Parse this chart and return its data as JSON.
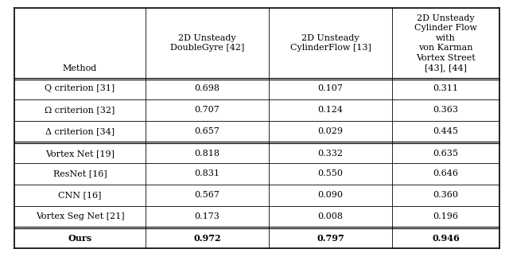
{
  "header_texts": [
    "Method",
    "2D Unsteady\nDoubleGyre [42]",
    "2D Unsteady\nCylinderFlow [13]",
    "2D Unsteady\nCylinder Flow\nwith\nvon Karman\nVortex Street\n[43], [44]"
  ],
  "row_labels": [
    "Q criterion [31]",
    "Ω criterion [32]",
    "Δ criterion [34]",
    "Vortex Net [19]",
    "ResNet [16]",
    "CNN [16]",
    "Vortex Seg Net [21]",
    "Ours"
  ],
  "values": [
    [
      "0.698",
      "0.107",
      "0.311"
    ],
    [
      "0.707",
      "0.124",
      "0.363"
    ],
    [
      "0.657",
      "0.029",
      "0.445"
    ],
    [
      "0.818",
      "0.332",
      "0.635"
    ],
    [
      "0.831",
      "0.550",
      "0.646"
    ],
    [
      "0.567",
      "0.090",
      "0.360"
    ],
    [
      "0.173",
      "0.008",
      "0.196"
    ],
    [
      "0.972",
      "0.797",
      "0.946"
    ]
  ],
  "bold_rows": [
    7
  ],
  "background_color": "#ffffff",
  "font_size": 8
}
